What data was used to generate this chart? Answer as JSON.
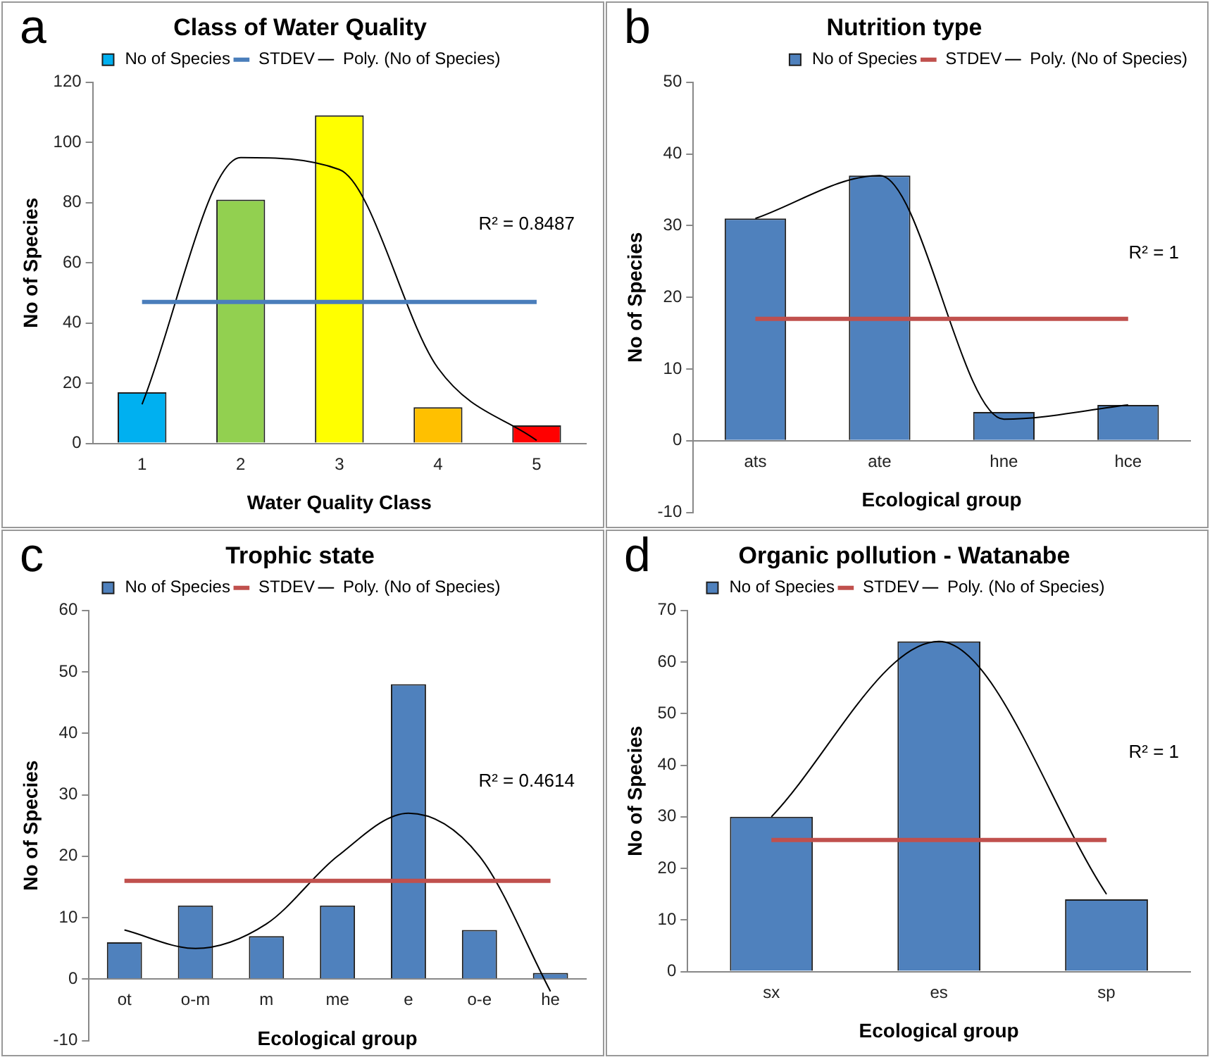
{
  "chart_data": [
    {
      "type": "bar",
      "title": "Class of Water Quality",
      "xlabel": "Water Quality Class",
      "ylabel": "No of Species",
      "categories": [
        "1",
        "2",
        "3",
        "4",
        "5"
      ],
      "ylim": [
        0,
        120
      ],
      "yticks": [
        0,
        20,
        40,
        60,
        80,
        100,
        120
      ],
      "legend": "top",
      "marker": "none",
      "annotations": [
        "a",
        "R² = 0.8487"
      ],
      "series": [
        {
          "name": "No of Species",
          "colors": [
            "#00b0f0",
            "#92d050",
            "#ffff00",
            "#ffc000",
            "#ff0000"
          ],
          "values": [
            17,
            81,
            109,
            12,
            6
          ]
        },
        {
          "name": "STDEV",
          "type": "line",
          "color": "#4a7ebb",
          "values": [
            47,
            47,
            47,
            47,
            47
          ]
        },
        {
          "name": "Poly. (No of Species)",
          "type": "line",
          "color": "#000000",
          "values": [
            13,
            95,
            91,
            25,
            1
          ]
        }
      ]
    },
    {
      "type": "bar",
      "title": "Nutrition type",
      "xlabel": "Ecological group",
      "ylabel": "No of Species",
      "categories": [
        "ats",
        "ate",
        "hne",
        "hce"
      ],
      "ylim": [
        -10,
        50
      ],
      "yticks": [
        -10,
        0,
        10,
        20,
        30,
        40,
        50
      ],
      "legend": "top right",
      "marker": "none",
      "annotations": [
        "b",
        "R² = 1"
      ],
      "series": [
        {
          "name": "No of Species",
          "color": "#4f81bd",
          "values": [
            31,
            37,
            4,
            5
          ]
        },
        {
          "name": "STDEV",
          "type": "line",
          "color": "#c0504d",
          "values": [
            17,
            17,
            17,
            17
          ]
        },
        {
          "name": "Poly. (No of Species)",
          "type": "line",
          "color": "#000000",
          "values": [
            31,
            37,
            3,
            5
          ]
        }
      ]
    },
    {
      "type": "bar",
      "title": "Trophic state",
      "xlabel": "Ecological group",
      "ylabel": "No of Species",
      "categories": [
        "ot",
        "o-m",
        "m",
        "me",
        "e",
        "o-e",
        "he"
      ],
      "ylim": [
        -10,
        60
      ],
      "yticks": [
        -10,
        0,
        10,
        20,
        30,
        40,
        50,
        60
      ],
      "legend": "top",
      "marker": "none",
      "annotations": [
        "c",
        "R² = 0.4614"
      ],
      "series": [
        {
          "name": "No of Species",
          "color": "#4f81bd",
          "values": [
            6,
            12,
            7,
            12,
            48,
            8,
            1
          ]
        },
        {
          "name": "STDEV",
          "type": "line",
          "color": "#c0504d",
          "values": [
            16,
            16,
            16,
            16,
            16,
            16,
            16
          ]
        },
        {
          "name": "Poly. (No of Species)",
          "type": "line",
          "color": "#000000",
          "values": [
            8,
            5,
            9,
            20,
            27,
            20,
            -2
          ]
        }
      ]
    },
    {
      "type": "bar",
      "title": "Organic pollution - Watanabe",
      "xlabel": "Ecological group",
      "ylabel": "No of Species",
      "categories": [
        "sx",
        "es",
        "sp"
      ],
      "ylim": [
        0,
        70
      ],
      "yticks": [
        0,
        10,
        20,
        30,
        40,
        50,
        60,
        70
      ],
      "legend": "top",
      "marker": "none",
      "annotations": [
        "d",
        "R² = 1"
      ],
      "series": [
        {
          "name": "No of Species",
          "color": "#4f81bd",
          "values": [
            30,
            64,
            14
          ]
        },
        {
          "name": "STDEV",
          "type": "line",
          "color": "#c0504d",
          "values": [
            25.5,
            25.5,
            25.5
          ]
        },
        {
          "name": "Poly. (No of Species)",
          "type": "line",
          "color": "#000000",
          "values": [
            30,
            64,
            15
          ]
        }
      ]
    }
  ]
}
